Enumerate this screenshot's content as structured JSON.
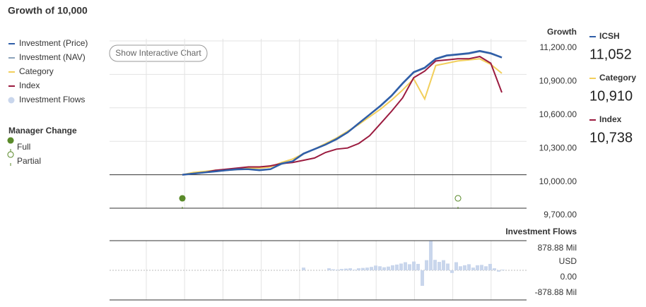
{
  "title": "Growth of 10,000",
  "button": "Show Interactive Chart",
  "manager_change": {
    "title": "Manager Change",
    "items": [
      "Full",
      "Partial"
    ]
  },
  "summary": [
    {
      "name": "ICSH",
      "value": "11,052",
      "color": "#2f5ea8"
    },
    {
      "name": "Category",
      "value": "10,910",
      "color": "#f2cf5b"
    },
    {
      "name": "Index",
      "value": "10,738",
      "color": "#9b1b3f"
    }
  ],
  "chart_data": [
    {
      "type": "line",
      "axis_title": "Growth",
      "ylim": [
        9700,
        11200
      ],
      "yticks": [
        {
          "value": 11200,
          "label": "11,200.00"
        },
        {
          "value": 10900,
          "label": "10,900.00"
        },
        {
          "value": 10600,
          "label": "10,600.00"
        },
        {
          "value": 10300,
          "label": "10,300.00"
        },
        {
          "value": 10000,
          "label": "10,000.00"
        },
        {
          "value": 9700,
          "label": "9,700.00"
        }
      ],
      "series": [
        {
          "name": "Investment (Price)",
          "color": "#2f5ea8",
          "values": [
            10000,
            10010,
            10020,
            10030,
            10040,
            10050,
            10050,
            10040,
            10050,
            10100,
            10120,
            10190,
            10230,
            10270,
            10320,
            10380,
            10460,
            10540,
            10620,
            10710,
            10820,
            10920,
            10960,
            11040,
            11070,
            11080,
            11090,
            11110,
            11090,
            11052
          ]
        },
        {
          "name": "Investment (NAV)",
          "color": "#8da4bb",
          "values": [
            10000,
            10010,
            10020,
            10030,
            10040,
            10045,
            10050,
            10045,
            10050,
            10095,
            10120,
            10185,
            10230,
            10270,
            10315,
            10380,
            10455,
            10540,
            10615,
            10705,
            10815,
            10915,
            10955,
            11035,
            11065,
            11075,
            11085,
            11105,
            11085,
            11050
          ]
        },
        {
          "name": "Category",
          "color": "#f2cf5b",
          "values": [
            10000,
            10020,
            10030,
            10040,
            10040,
            10050,
            10060,
            10060,
            10070,
            10110,
            10140,
            10190,
            10230,
            10280,
            10330,
            10390,
            10450,
            10520,
            10590,
            10670,
            10760,
            10860,
            10680,
            10980,
            11000,
            11020,
            11030,
            11040,
            10990,
            10910
          ]
        },
        {
          "name": "Index",
          "color": "#9b1b3f",
          "values": [
            10000,
            10010,
            10020,
            10040,
            10050,
            10060,
            10070,
            10070,
            10080,
            10100,
            10110,
            10130,
            10150,
            10200,
            10230,
            10240,
            10280,
            10350,
            10460,
            10570,
            10690,
            10870,
            10930,
            11020,
            11030,
            11040,
            11040,
            11060,
            11000,
            10738
          ]
        }
      ]
    },
    {
      "type": "bar",
      "title": "Investment Flows",
      "unit": "USD",
      "ylim": [
        -878.88,
        878.88
      ],
      "yticks": [
        {
          "value": 878.88,
          "label": "878.88 Mil"
        },
        {
          "value": 0,
          "label": "0.00"
        },
        {
          "value": -878.88,
          "label": "-878.88 Mil"
        }
      ],
      "series": [
        {
          "name": "Investment Flows",
          "color": "#c9d6ec",
          "values": [
            10,
            0,
            0,
            0,
            80,
            0,
            0,
            0,
            0,
            0,
            60,
            30,
            20,
            40,
            50,
            60,
            20,
            60,
            70,
            80,
            100,
            140,
            120,
            90,
            110,
            150,
            170,
            200,
            240,
            180,
            260,
            190,
            -460,
            300,
            870,
            310,
            250,
            300,
            200,
            -80,
            240,
            120,
            150,
            180,
            80,
            150,
            160,
            120,
            190,
            60,
            -40,
            20
          ]
        }
      ]
    }
  ]
}
